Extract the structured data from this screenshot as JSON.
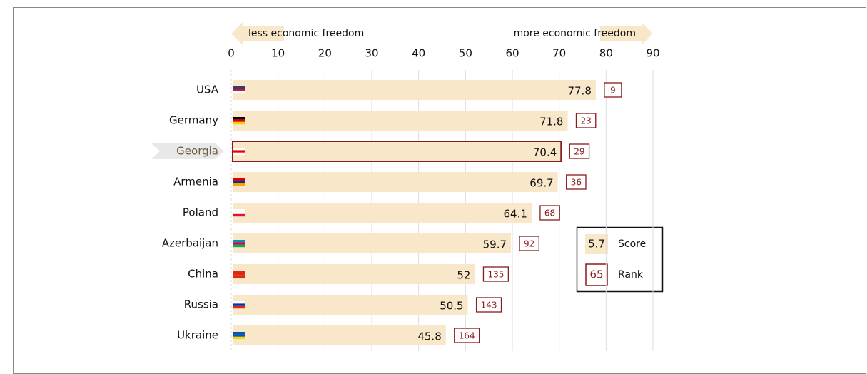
{
  "chart_data": {
    "type": "bar",
    "orientation": "horizontal",
    "annotations": {
      "left": "less economic freedom",
      "right": "more economic freedom"
    },
    "categories": [
      "USA",
      "Germany",
      "Georgia",
      "Armenia",
      "Poland",
      "Azerbaijan",
      "China",
      "Russia",
      "Ukraine"
    ],
    "values": [
      77.8,
      71.8,
      70.4,
      69.7,
      64.1,
      59.7,
      52,
      50.5,
      45.8
    ],
    "ranks": [
      9,
      23,
      29,
      36,
      68,
      92,
      135,
      143,
      164
    ],
    "color": "#f9e7c9",
    "rank_color": "#8b1a1a",
    "highlight": "Georgia",
    "xlim": [
      0,
      90
    ],
    "xticks": [
      0,
      10,
      20,
      30,
      40,
      50,
      60,
      70,
      80,
      90
    ],
    "grid": true,
    "legend": {
      "score_example": "5.7",
      "score_label": "Score",
      "rank_example": "65",
      "rank_label": "Rank"
    }
  }
}
